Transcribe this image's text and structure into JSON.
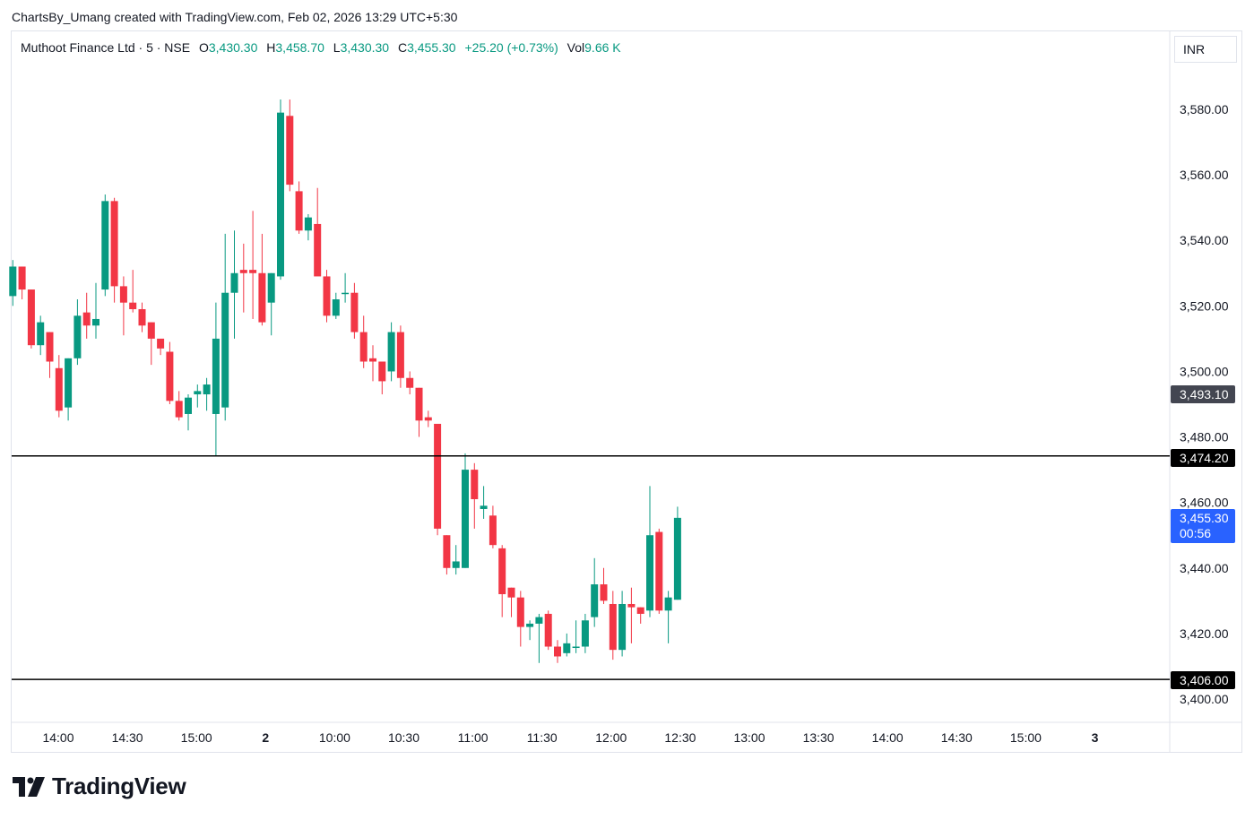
{
  "attribution": "ChartsBy_Umang created with TradingView.com, Feb 02, 2026 13:29 UTC+5:30",
  "legend": {
    "symbol": "Muthoot Finance Ltd · 5 · NSE",
    "open_label": "O",
    "open": "3,430.30",
    "high_label": "H",
    "high": "3,458.70",
    "low_label": "L",
    "low": "3,430.30",
    "close_label": "C",
    "close": "3,455.30",
    "change": "+25.20 (+0.73%)",
    "vol_label": "Vol",
    "vol": "9.66 K"
  },
  "currency": "INR",
  "brand": "TradingView",
  "colors": {
    "up": "#089981",
    "down": "#f23645",
    "last_price_bg": "#2962ff",
    "hline": "#000000",
    "marker_bg": "#434651"
  },
  "price_tags": {
    "marker": "3,493.10",
    "line_upper": "3,474.20",
    "last": "3,455.30",
    "countdown": "00:56",
    "line_lower": "3,406.00"
  },
  "chart_data": {
    "type": "candlestick",
    "symbol": "Muthoot Finance Ltd",
    "interval": "5",
    "exchange": "NSE",
    "y_ticks": [
      "3,580.00",
      "3,560.00",
      "3,540.00",
      "3,520.00",
      "3,500.00",
      "3,480.00",
      "3,460.00",
      "3,440.00",
      "3,420.00",
      "3,400.00"
    ],
    "y_tick_values": [
      3580,
      3560,
      3540,
      3520,
      3500,
      3480,
      3460,
      3440,
      3420,
      3400
    ],
    "x_ticks": [
      "14:00",
      "14:30",
      "15:00",
      "2",
      "10:00",
      "10:30",
      "11:00",
      "11:30",
      "12:00",
      "12:30",
      "13:00",
      "13:30",
      "14:00",
      "14:30",
      "15:00",
      "3"
    ],
    "horizontal_lines": [
      3474.2,
      3406.0
    ],
    "candles": [
      {
        "o": 3523,
        "h": 3534,
        "l": 3520,
        "c": 3532
      },
      {
        "o": 3532,
        "h": 3532,
        "l": 3522,
        "c": 3525
      },
      {
        "o": 3525,
        "h": 3525,
        "l": 3507,
        "c": 3508
      },
      {
        "o": 3508,
        "h": 3517,
        "l": 3505,
        "c": 3515
      },
      {
        "o": 3512,
        "h": 3512,
        "l": 3498,
        "c": 3503
      },
      {
        "o": 3501,
        "h": 3505,
        "l": 3486,
        "c": 3488
      },
      {
        "o": 3489,
        "h": 3504,
        "l": 3485,
        "c": 3504
      },
      {
        "o": 3504,
        "h": 3522,
        "l": 3502,
        "c": 3517
      },
      {
        "o": 3518,
        "h": 3524,
        "l": 3510,
        "c": 3514
      },
      {
        "o": 3514,
        "h": 3527,
        "l": 3510,
        "c": 3516
      },
      {
        "o": 3525,
        "h": 3554,
        "l": 3523,
        "c": 3552
      },
      {
        "o": 3552,
        "h": 3553,
        "l": 3521,
        "c": 3526
      },
      {
        "o": 3526,
        "h": 3529,
        "l": 3511,
        "c": 3521
      },
      {
        "o": 3521,
        "h": 3531,
        "l": 3518,
        "c": 3519
      },
      {
        "o": 3519,
        "h": 3521,
        "l": 3512,
        "c": 3514
      },
      {
        "o": 3515,
        "h": 3515,
        "l": 3502,
        "c": 3510
      },
      {
        "o": 3510,
        "h": 3509,
        "l": 3505,
        "c": 3507
      },
      {
        "o": 3506,
        "h": 3509,
        "l": 3490,
        "c": 3491
      },
      {
        "o": 3491,
        "h": 3494,
        "l": 3485,
        "c": 3486
      },
      {
        "o": 3487,
        "h": 3493,
        "l": 3482,
        "c": 3492
      },
      {
        "o": 3493,
        "h": 3496,
        "l": 3489,
        "c": 3494
      },
      {
        "o": 3493,
        "h": 3498,
        "l": 3488,
        "c": 3496
      },
      {
        "o": 3487,
        "h": 3521,
        "l": 3474,
        "c": 3510
      },
      {
        "o": 3489,
        "h": 3542,
        "l": 3485,
        "c": 3524
      },
      {
        "o": 3524,
        "h": 3543,
        "l": 3510,
        "c": 3530
      },
      {
        "o": 3531,
        "h": 3539,
        "l": 3518,
        "c": 3530
      },
      {
        "o": 3531,
        "h": 3549,
        "l": 3516,
        "c": 3530
      },
      {
        "o": 3530,
        "h": 3542,
        "l": 3514,
        "c": 3515
      },
      {
        "o": 3521,
        "h": 3530,
        "l": 3511,
        "c": 3530
      },
      {
        "o": 3529,
        "h": 3583,
        "l": 3528,
        "c": 3579
      },
      {
        "o": 3578,
        "h": 3583,
        "l": 3555,
        "c": 3557
      },
      {
        "o": 3555,
        "h": 3558,
        "l": 3542,
        "c": 3543
      },
      {
        "o": 3543,
        "h": 3548,
        "l": 3540,
        "c": 3547
      },
      {
        "o": 3545,
        "h": 3556,
        "l": 3530,
        "c": 3529
      },
      {
        "o": 3529,
        "h": 3531,
        "l": 3515,
        "c": 3517
      },
      {
        "o": 3517,
        "h": 3524,
        "l": 3516,
        "c": 3522
      },
      {
        "o": 3524,
        "h": 3530,
        "l": 3521,
        "c": 3524
      },
      {
        "o": 3524,
        "h": 3527,
        "l": 3510,
        "c": 3512
      },
      {
        "o": 3512,
        "h": 3517,
        "l": 3501,
        "c": 3503
      },
      {
        "o": 3504,
        "h": 3508,
        "l": 3497,
        "c": 3503
      },
      {
        "o": 3503,
        "h": 3502,
        "l": 3493,
        "c": 3497
      },
      {
        "o": 3500,
        "h": 3515,
        "l": 3497,
        "c": 3512
      },
      {
        "o": 3512,
        "h": 3514,
        "l": 3495,
        "c": 3498
      },
      {
        "o": 3498,
        "h": 3500,
        "l": 3493,
        "c": 3495
      },
      {
        "o": 3495,
        "h": 3495,
        "l": 3480,
        "c": 3485
      },
      {
        "o": 3486,
        "h": 3488,
        "l": 3483,
        "c": 3485
      },
      {
        "o": 3484,
        "h": 3483,
        "l": 3450,
        "c": 3452
      },
      {
        "o": 3450,
        "h": 3450,
        "l": 3438,
        "c": 3440
      },
      {
        "o": 3440,
        "h": 3447,
        "l": 3438,
        "c": 3442
      },
      {
        "o": 3440,
        "h": 3475,
        "l": 3440,
        "c": 3470
      },
      {
        "o": 3470,
        "h": 3472,
        "l": 3452,
        "c": 3461
      },
      {
        "o": 3458,
        "h": 3465,
        "l": 3455,
        "c": 3459
      },
      {
        "o": 3456,
        "h": 3459,
        "l": 3446,
        "c": 3447
      },
      {
        "o": 3446,
        "h": 3447,
        "l": 3425,
        "c": 3432
      },
      {
        "o": 3434,
        "h": 3434,
        "l": 3425,
        "c": 3431
      },
      {
        "o": 3431,
        "h": 3433,
        "l": 3416,
        "c": 3422
      },
      {
        "o": 3422,
        "h": 3424,
        "l": 3418,
        "c": 3423
      },
      {
        "o": 3423,
        "h": 3426,
        "l": 3411,
        "c": 3425
      },
      {
        "o": 3426,
        "h": 3427,
        "l": 3415,
        "c": 3416
      },
      {
        "o": 3416,
        "h": 3418,
        "l": 3411,
        "c": 3413
      },
      {
        "o": 3414,
        "h": 3420,
        "l": 3413,
        "c": 3417
      },
      {
        "o": 3416,
        "h": 3424,
        "l": 3414,
        "c": 3416
      },
      {
        "o": 3416,
        "h": 3426,
        "l": 3414,
        "c": 3424
      },
      {
        "o": 3425,
        "h": 3443,
        "l": 3422,
        "c": 3435
      },
      {
        "o": 3435,
        "h": 3440,
        "l": 3429,
        "c": 3430
      },
      {
        "o": 3429,
        "h": 3433,
        "l": 3412,
        "c": 3415
      },
      {
        "o": 3415,
        "h": 3433,
        "l": 3413,
        "c": 3429
      },
      {
        "o": 3429,
        "h": 3434,
        "l": 3417,
        "c": 3428
      },
      {
        "o": 3428,
        "h": 3428,
        "l": 3423,
        "c": 3426
      },
      {
        "o": 3427,
        "h": 3465,
        "l": 3425,
        "c": 3450
      },
      {
        "o": 3451,
        "h": 3452,
        "l": 3426,
        "c": 3427
      },
      {
        "o": 3427,
        "h": 3433,
        "l": 3417,
        "c": 3431
      },
      {
        "o": 3430.3,
        "h": 3458.7,
        "l": 3430.3,
        "c": 3455.3
      }
    ]
  }
}
